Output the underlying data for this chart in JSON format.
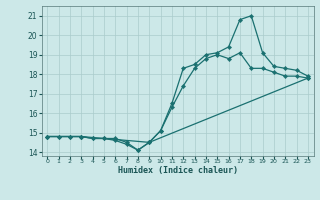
{
  "xlabel": "Humidex (Indice chaleur)",
  "ylabel": "",
  "bg_color": "#cce8e8",
  "grid_color": "#aacccc",
  "line_color": "#1a7070",
  "xlim": [
    -0.5,
    23.5
  ],
  "ylim": [
    13.8,
    21.5
  ],
  "xticks": [
    0,
    1,
    2,
    3,
    4,
    5,
    6,
    7,
    8,
    9,
    10,
    11,
    12,
    13,
    14,
    15,
    16,
    17,
    18,
    19,
    20,
    21,
    22,
    23
  ],
  "yticks": [
    14,
    15,
    16,
    17,
    18,
    19,
    20,
    21
  ],
  "line1_x": [
    0,
    1,
    2,
    3,
    4,
    5,
    6,
    7,
    8,
    9,
    10,
    11,
    12,
    13,
    14,
    15,
    16,
    17,
    18,
    19,
    20,
    21,
    22,
    23
  ],
  "line1_y": [
    14.8,
    14.8,
    14.8,
    14.8,
    14.7,
    14.7,
    14.6,
    14.4,
    14.1,
    14.5,
    15.1,
    16.3,
    17.4,
    18.3,
    18.8,
    19.0,
    18.8,
    19.1,
    18.3,
    18.3,
    18.1,
    17.9,
    17.9,
    17.8
  ],
  "line2_x": [
    0,
    1,
    2,
    3,
    4,
    5,
    6,
    7,
    8,
    9,
    10,
    11,
    12,
    13,
    14,
    15,
    16,
    17,
    18,
    19,
    20,
    21,
    22,
    23
  ],
  "line2_y": [
    14.8,
    14.8,
    14.8,
    14.8,
    14.7,
    14.7,
    14.7,
    14.5,
    14.1,
    14.5,
    15.1,
    16.5,
    18.3,
    18.5,
    19.0,
    19.1,
    19.4,
    20.8,
    21.0,
    19.1,
    18.4,
    18.3,
    18.2,
    17.9
  ],
  "line3_x": [
    0,
    3,
    9,
    23
  ],
  "line3_y": [
    14.8,
    14.8,
    14.5,
    17.8
  ]
}
